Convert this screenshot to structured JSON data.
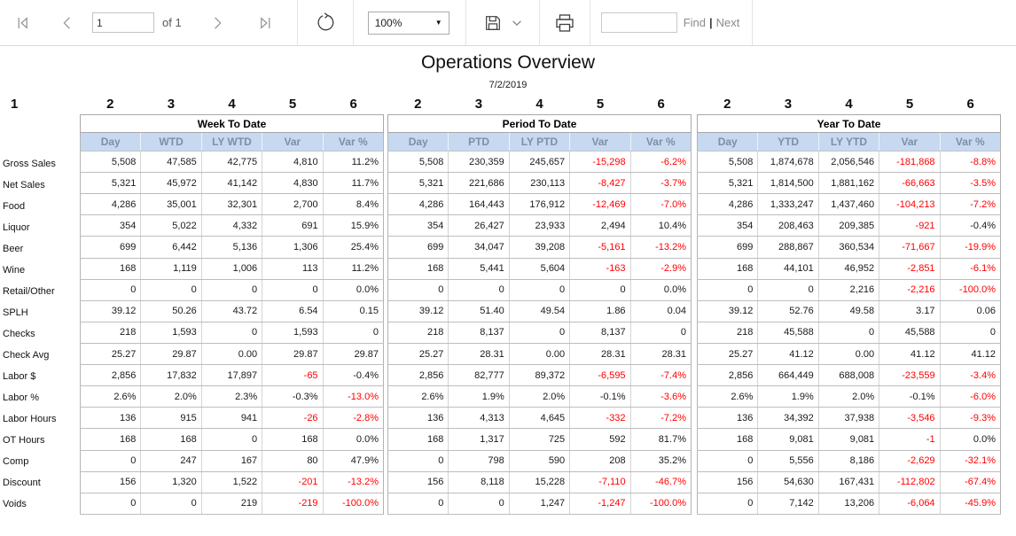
{
  "toolbar": {
    "page_input_value": "1",
    "page_of_label": "of 1",
    "zoom_select_value": "100%",
    "find_input_value": "",
    "find_label": "Find",
    "separator_label": "|",
    "next_label": "Next",
    "icons": {
      "first_page": "first-page-icon",
      "previous_page": "chevron-left-icon",
      "next_page": "chevron-right-icon",
      "last_page": "last-page-icon",
      "refresh": "refresh-icon",
      "zoom_caret": "caret-down-icon",
      "export": "save-floppy-icon",
      "export_menu": "chevron-down-icon",
      "print": "printer-icon"
    }
  },
  "report": {
    "title": "Operations Overview",
    "date": "7/2/2019",
    "column_numbers": {
      "label_column": "1",
      "data_columns": [
        "2",
        "3",
        "4",
        "5",
        "6"
      ]
    },
    "colors": {
      "subheader_bg": "#c7d9f1",
      "subheader_text": "#7d8ea6",
      "negative": "#ff0000"
    },
    "sections": [
      {
        "key": "wtd",
        "title": "Week To Date",
        "columns": [
          "Day",
          "WTD",
          "LY WTD",
          "Var",
          "Var %"
        ]
      },
      {
        "key": "ptd",
        "title": "Period To Date",
        "columns": [
          "Day",
          "PTD",
          "LY PTD",
          "Var",
          "Var %"
        ]
      },
      {
        "key": "ytd",
        "title": "Year To Date",
        "columns": [
          "Day",
          "YTD",
          "LY YTD",
          "Var",
          "Var %"
        ]
      }
    ],
    "rows": [
      {
        "label": "Gross Sales",
        "wtd": [
          "5,508",
          "47,585",
          "42,775",
          "4,810",
          "11.2%"
        ],
        "wtd_red": [
          0,
          0,
          0,
          0,
          0
        ],
        "ptd": [
          "5,508",
          "230,359",
          "245,657",
          "-15,298",
          "-6.2%"
        ],
        "ptd_red": [
          0,
          0,
          0,
          1,
          1
        ],
        "ytd": [
          "5,508",
          "1,874,678",
          "2,056,546",
          "-181,868",
          "-8.8%"
        ],
        "ytd_red": [
          0,
          0,
          0,
          1,
          1
        ]
      },
      {
        "label": "Net Sales",
        "wtd": [
          "5,321",
          "45,972",
          "41,142",
          "4,830",
          "11.7%"
        ],
        "wtd_red": [
          0,
          0,
          0,
          0,
          0
        ],
        "ptd": [
          "5,321",
          "221,686",
          "230,113",
          "-8,427",
          "-3.7%"
        ],
        "ptd_red": [
          0,
          0,
          0,
          1,
          1
        ],
        "ytd": [
          "5,321",
          "1,814,500",
          "1,881,162",
          "-66,663",
          "-3.5%"
        ],
        "ytd_red": [
          0,
          0,
          0,
          1,
          1
        ]
      },
      {
        "label": "Food",
        "wtd": [
          "4,286",
          "35,001",
          "32,301",
          "2,700",
          "8.4%"
        ],
        "wtd_red": [
          0,
          0,
          0,
          0,
          0
        ],
        "ptd": [
          "4,286",
          "164,443",
          "176,912",
          "-12,469",
          "-7.0%"
        ],
        "ptd_red": [
          0,
          0,
          0,
          1,
          1
        ],
        "ytd": [
          "4,286",
          "1,333,247",
          "1,437,460",
          "-104,213",
          "-7.2%"
        ],
        "ytd_red": [
          0,
          0,
          0,
          1,
          1
        ]
      },
      {
        "label": "Liquor",
        "wtd": [
          "354",
          "5,022",
          "4,332",
          "691",
          "15.9%"
        ],
        "wtd_red": [
          0,
          0,
          0,
          0,
          0
        ],
        "ptd": [
          "354",
          "26,427",
          "23,933",
          "2,494",
          "10.4%"
        ],
        "ptd_red": [
          0,
          0,
          0,
          0,
          0
        ],
        "ytd": [
          "354",
          "208,463",
          "209,385",
          "-921",
          "-0.4%"
        ],
        "ytd_red": [
          0,
          0,
          0,
          1,
          0
        ]
      },
      {
        "label": "Beer",
        "wtd": [
          "699",
          "6,442",
          "5,136",
          "1,306",
          "25.4%"
        ],
        "wtd_red": [
          0,
          0,
          0,
          0,
          0
        ],
        "ptd": [
          "699",
          "34,047",
          "39,208",
          "-5,161",
          "-13.2%"
        ],
        "ptd_red": [
          0,
          0,
          0,
          1,
          1
        ],
        "ytd": [
          "699",
          "288,867",
          "360,534",
          "-71,667",
          "-19.9%"
        ],
        "ytd_red": [
          0,
          0,
          0,
          1,
          1
        ]
      },
      {
        "label": "Wine",
        "wtd": [
          "168",
          "1,119",
          "1,006",
          "113",
          "11.2%"
        ],
        "wtd_red": [
          0,
          0,
          0,
          0,
          0
        ],
        "ptd": [
          "168",
          "5,441",
          "5,604",
          "-163",
          "-2.9%"
        ],
        "ptd_red": [
          0,
          0,
          0,
          1,
          1
        ],
        "ytd": [
          "168",
          "44,101",
          "46,952",
          "-2,851",
          "-6.1%"
        ],
        "ytd_red": [
          0,
          0,
          0,
          1,
          1
        ]
      },
      {
        "label": "Retail/Other",
        "wtd": [
          "0",
          "0",
          "0",
          "0",
          "0.0%"
        ],
        "wtd_red": [
          0,
          0,
          0,
          0,
          0
        ],
        "ptd": [
          "0",
          "0",
          "0",
          "0",
          "0.0%"
        ],
        "ptd_red": [
          0,
          0,
          0,
          0,
          0
        ],
        "ytd": [
          "0",
          "0",
          "2,216",
          "-2,216",
          "-100.0%"
        ],
        "ytd_red": [
          0,
          0,
          0,
          1,
          1
        ]
      },
      {
        "label": "SPLH",
        "wtd": [
          "39.12",
          "50.26",
          "43.72",
          "6.54",
          "0.15"
        ],
        "wtd_red": [
          0,
          0,
          0,
          0,
          0
        ],
        "ptd": [
          "39.12",
          "51.40",
          "49.54",
          "1.86",
          "0.04"
        ],
        "ptd_red": [
          0,
          0,
          0,
          0,
          0
        ],
        "ytd": [
          "39.12",
          "52.76",
          "49.58",
          "3.17",
          "0.06"
        ],
        "ytd_red": [
          0,
          0,
          0,
          0,
          0
        ]
      },
      {
        "label": "Checks",
        "wtd": [
          "218",
          "1,593",
          "0",
          "1,593",
          "0"
        ],
        "wtd_red": [
          0,
          0,
          0,
          0,
          0
        ],
        "ptd": [
          "218",
          "8,137",
          "0",
          "8,137",
          "0"
        ],
        "ptd_red": [
          0,
          0,
          0,
          0,
          0
        ],
        "ytd": [
          "218",
          "45,588",
          "0",
          "45,588",
          "0"
        ],
        "ytd_red": [
          0,
          0,
          0,
          0,
          0
        ]
      },
      {
        "label": "Check Avg",
        "wtd": [
          "25.27",
          "29.87",
          "0.00",
          "29.87",
          "29.87"
        ],
        "wtd_red": [
          0,
          0,
          0,
          0,
          0
        ],
        "ptd": [
          "25.27",
          "28.31",
          "0.00",
          "28.31",
          "28.31"
        ],
        "ptd_red": [
          0,
          0,
          0,
          0,
          0
        ],
        "ytd": [
          "25.27",
          "41.12",
          "0.00",
          "41.12",
          "41.12"
        ],
        "ytd_red": [
          0,
          0,
          0,
          0,
          0
        ]
      },
      {
        "label": "Labor $",
        "wtd": [
          "2,856",
          "17,832",
          "17,897",
          "-65",
          "-0.4%"
        ],
        "wtd_red": [
          0,
          0,
          0,
          1,
          0
        ],
        "ptd": [
          "2,856",
          "82,777",
          "89,372",
          "-6,595",
          "-7.4%"
        ],
        "ptd_red": [
          0,
          0,
          0,
          1,
          1
        ],
        "ytd": [
          "2,856",
          "664,449",
          "688,008",
          "-23,559",
          "-3.4%"
        ],
        "ytd_red": [
          0,
          0,
          0,
          1,
          1
        ]
      },
      {
        "label": "Labor %",
        "wtd": [
          "2.6%",
          "2.0%",
          "2.3%",
          "-0.3%",
          "-13.0%"
        ],
        "wtd_red": [
          0,
          0,
          0,
          0,
          1
        ],
        "ptd": [
          "2.6%",
          "1.9%",
          "2.0%",
          "-0.1%",
          "-3.6%"
        ],
        "ptd_red": [
          0,
          0,
          0,
          0,
          1
        ],
        "ytd": [
          "2.6%",
          "1.9%",
          "2.0%",
          "-0.1%",
          "-6.0%"
        ],
        "ytd_red": [
          0,
          0,
          0,
          0,
          1
        ]
      },
      {
        "label": "Labor Hours",
        "wtd": [
          "136",
          "915",
          "941",
          "-26",
          "-2.8%"
        ],
        "wtd_red": [
          0,
          0,
          0,
          1,
          1
        ],
        "ptd": [
          "136",
          "4,313",
          "4,645",
          "-332",
          "-7.2%"
        ],
        "ptd_red": [
          0,
          0,
          0,
          1,
          1
        ],
        "ytd": [
          "136",
          "34,392",
          "37,938",
          "-3,546",
          "-9.3%"
        ],
        "ytd_red": [
          0,
          0,
          0,
          1,
          1
        ]
      },
      {
        "label": "OT Hours",
        "wtd": [
          "168",
          "168",
          "0",
          "168",
          "0.0%"
        ],
        "wtd_red": [
          0,
          0,
          0,
          0,
          0
        ],
        "ptd": [
          "168",
          "1,317",
          "725",
          "592",
          "81.7%"
        ],
        "ptd_red": [
          0,
          0,
          0,
          0,
          0
        ],
        "ytd": [
          "168",
          "9,081",
          "9,081",
          "-1",
          "0.0%"
        ],
        "ytd_red": [
          0,
          0,
          0,
          1,
          0
        ]
      },
      {
        "label": "Comp",
        "wtd": [
          "0",
          "247",
          "167",
          "80",
          "47.9%"
        ],
        "wtd_red": [
          0,
          0,
          0,
          0,
          0
        ],
        "ptd": [
          "0",
          "798",
          "590",
          "208",
          "35.2%"
        ],
        "ptd_red": [
          0,
          0,
          0,
          0,
          0
        ],
        "ytd": [
          "0",
          "5,556",
          "8,186",
          "-2,629",
          "-32.1%"
        ],
        "ytd_red": [
          0,
          0,
          0,
          1,
          1
        ]
      },
      {
        "label": "Discount",
        "wtd": [
          "156",
          "1,320",
          "1,522",
          "-201",
          "-13.2%"
        ],
        "wtd_red": [
          0,
          0,
          0,
          1,
          1
        ],
        "ptd": [
          "156",
          "8,118",
          "15,228",
          "-7,110",
          "-46.7%"
        ],
        "ptd_red": [
          0,
          0,
          0,
          1,
          1
        ],
        "ytd": [
          "156",
          "54,630",
          "167,431",
          "-112,802",
          "-67.4%"
        ],
        "ytd_red": [
          0,
          0,
          0,
          1,
          1
        ]
      },
      {
        "label": "Voids",
        "wtd": [
          "0",
          "0",
          "219",
          "-219",
          "-100.0%"
        ],
        "wtd_red": [
          0,
          0,
          0,
          1,
          1
        ],
        "ptd": [
          "0",
          "0",
          "1,247",
          "-1,247",
          "-100.0%"
        ],
        "ptd_red": [
          0,
          0,
          0,
          1,
          1
        ],
        "ytd": [
          "0",
          "7,142",
          "13,206",
          "-6,064",
          "-45.9%"
        ],
        "ytd_red": [
          0,
          0,
          0,
          1,
          1
        ]
      }
    ]
  }
}
